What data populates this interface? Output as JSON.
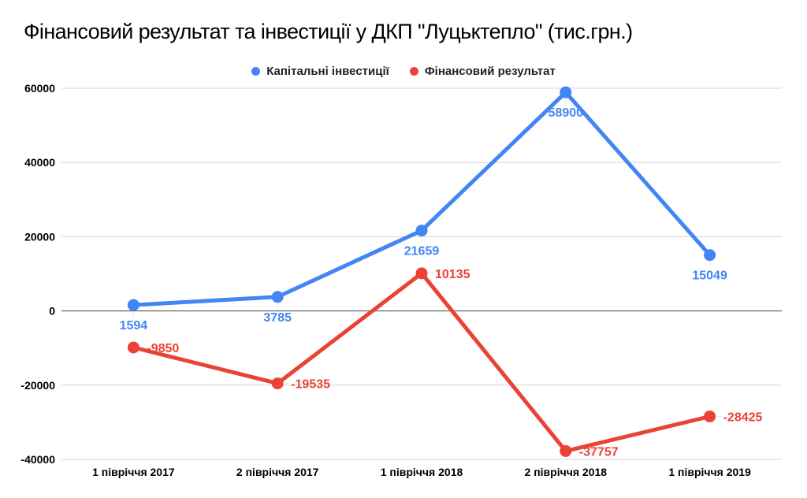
{
  "title": {
    "text": "Фінансовий результат та інвестиції у ДКП \"Луцьктепло\" (тис.грн.)"
  },
  "legend": {
    "items": [
      {
        "label": "Капітальні інвестиції",
        "color": "#4285f4"
      },
      {
        "label": "Фінансовий результат",
        "color": "#ea4335"
      }
    ]
  },
  "chart_data": {
    "type": "line",
    "title": "Фінансовий результат та інвестиції у ДКП \"Луцьктепло\" (тис.грн.)",
    "categories": [
      "1 півріччя 2017",
      "2 півріччя 2017",
      "1 півріччя 2018",
      "2 півріччя 2018",
      "1 півріччя 2019"
    ],
    "series": [
      {
        "name": "Капітальні інвестиції",
        "color": "#4285f4",
        "values": [
          1594,
          3785,
          21659,
          58900,
          15049
        ],
        "point_labels": [
          "1594",
          "3785",
          "21659",
          "58900",
          "15049"
        ],
        "label_position": "below"
      },
      {
        "name": "Фінансовий результат",
        "color": "#ea4335",
        "values": [
          -9850,
          -19535,
          10135,
          -37757,
          -28425
        ],
        "point_labels": [
          "-9850",
          "-19535",
          "10135",
          "-37757",
          "-28425"
        ],
        "label_position": "right"
      }
    ],
    "xlabel": "",
    "ylabel": "",
    "y_axis": {
      "min": -40000,
      "max": 60000,
      "ticks": [
        60000,
        40000,
        20000,
        0,
        -20000,
        -40000
      ],
      "tick_labels": [
        "60000",
        "40000",
        "20000",
        "0",
        "-20000",
        "-40000"
      ]
    },
    "grid": true,
    "gridline_color": "#d6d6d6",
    "zero_line_color": "#424242",
    "axis_label_color": "#000000",
    "legend_position": "top",
    "background_color": "#ffffff"
  }
}
